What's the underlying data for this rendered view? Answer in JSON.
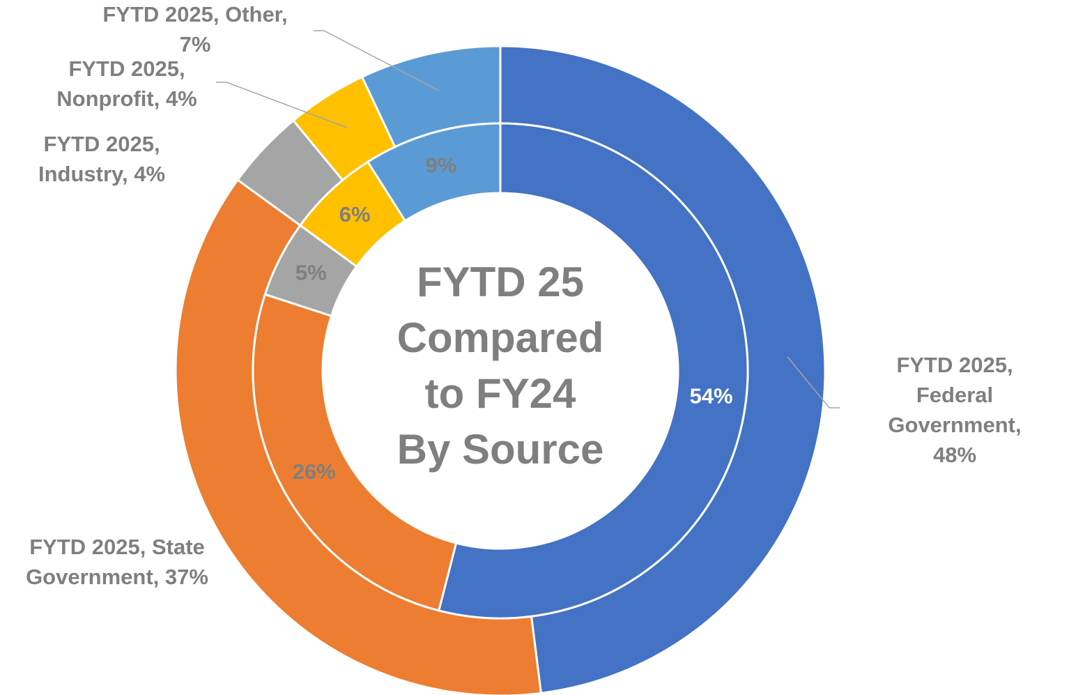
{
  "chart_data": {
    "type": "donut",
    "title": "FYTD 25\nCompared\nto FY24\nBy Source",
    "colors": [
      "#4472c4",
      "#ed7d31",
      "#a5a5a5",
      "#ffc000",
      "#5b9bd5"
    ],
    "series": [
      {
        "values": [
          48,
          37,
          4,
          4,
          7
        ],
        "value_labels": [
          "FYTD 2025,\nFederal\nGovernment, 48%",
          "FYTD 2025, State\nGovernment, 37%",
          "FYTD 2025,\nIndustry, 4%",
          "FYTD 2025,\nNonprofit, 4%",
          "FYTD 2025, Other,\n7%"
        ]
      },
      {
        "values": [
          54,
          26,
          5,
          6,
          9
        ],
        "value_labels": [
          "54%",
          "26%",
          "5%",
          "6%",
          "9%"
        ],
        "label_colors": [
          "#ffffff",
          "#7f7f7f",
          "#7f7f7f",
          "#7f7f7f",
          "#7f7f7f"
        ]
      }
    ]
  }
}
